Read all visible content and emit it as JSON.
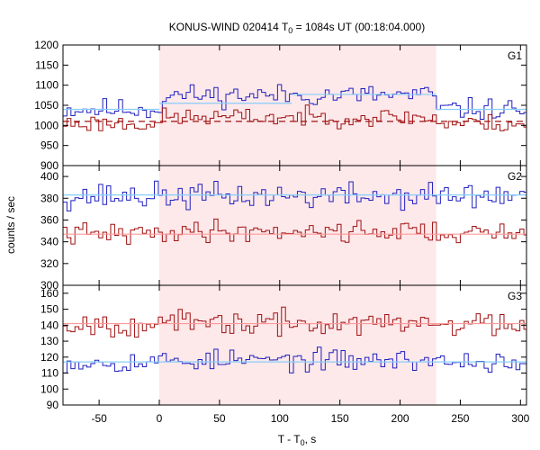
{
  "chart_data": {
    "type": "line",
    "title": {
      "prefix": "KONUS-WIND 020414 T",
      "sub": "0",
      "suffix": " = 1084s UT (00:18:04.000)"
    },
    "xlabel": {
      "prefix": "T - T",
      "sub": "0",
      "suffix": ", s"
    },
    "ylabel": "counts / sec",
    "xlim": [
      -80,
      305
    ],
    "x_ticks": [
      -50,
      0,
      50,
      100,
      150,
      200,
      250,
      300
    ],
    "shaded_interval": [
      0,
      230
    ],
    "colors": {
      "blue": "#2020c0",
      "red": "#a01010",
      "fit_blue": "#87cefa",
      "fit_red": "#ff9999",
      "shade": "#fde8ea"
    },
    "panels": [
      {
        "label": "G1",
        "ylim": [
          900,
          1200
        ],
        "y_ticks": [
          900,
          950,
          1000,
          1050,
          1100,
          1150,
          1200
        ],
        "series": [
          {
            "color": "blue",
            "step": 3.3,
            "start": -80,
            "base": 1040,
            "mid": 1075,
            "amp": 24,
            "seed": 11
          },
          {
            "color": "red",
            "step": 3.3,
            "start": -80,
            "base": 1005,
            "mid": 1020,
            "amp": 20,
            "seed": 23
          }
        ],
        "fits": [
          {
            "color": "fit_blue",
            "dashed": false,
            "segments": [
              [
                -80,
                0,
                1040
              ],
              [
                0,
                110,
                1055
              ],
              [
                110,
                230,
                1077
              ],
              [
                230,
                305,
                1040
              ]
            ]
          },
          {
            "color": "red",
            "dashed": true,
            "segments": [
              [
                -80,
                305,
                1010
              ]
            ]
          }
        ]
      },
      {
        "label": "G2",
        "ylim": [
          300,
          410
        ],
        "y_ticks": [
          300,
          320,
          340,
          360,
          380,
          400
        ],
        "series": [
          {
            "color": "blue",
            "step": 3.3,
            "start": -80,
            "base": 382,
            "mid": 382,
            "amp": 11,
            "seed": 37
          },
          {
            "color": "red",
            "step": 3.3,
            "start": -80,
            "base": 347,
            "mid": 350,
            "amp": 9,
            "seed": 41
          }
        ],
        "fits": [
          {
            "color": "fit_blue",
            "dashed": false,
            "segments": [
              [
                -80,
                305,
                383
              ]
            ]
          },
          {
            "color": "fit_red",
            "dashed": false,
            "segments": [
              [
                -80,
                305,
                347
              ]
            ]
          }
        ]
      },
      {
        "label": "G3",
        "ylim": [
          90,
          165
        ],
        "y_ticks": [
          90,
          100,
          110,
          120,
          130,
          140,
          150,
          160
        ],
        "series": [
          {
            "color": "blue",
            "step": 3.3,
            "start": -80,
            "base": 117,
            "mid": 118,
            "amp": 6,
            "seed": 53
          },
          {
            "color": "red",
            "step": 3.3,
            "start": -80,
            "base": 141,
            "mid": 141,
            "amp": 7,
            "seed": 67
          }
        ],
        "fits": [
          {
            "color": "fit_blue",
            "dashed": false,
            "segments": [
              [
                -80,
                305,
                117
              ]
            ]
          },
          {
            "color": "fit_red",
            "dashed": false,
            "segments": [
              [
                -80,
                305,
                141
              ]
            ]
          }
        ]
      }
    ]
  }
}
